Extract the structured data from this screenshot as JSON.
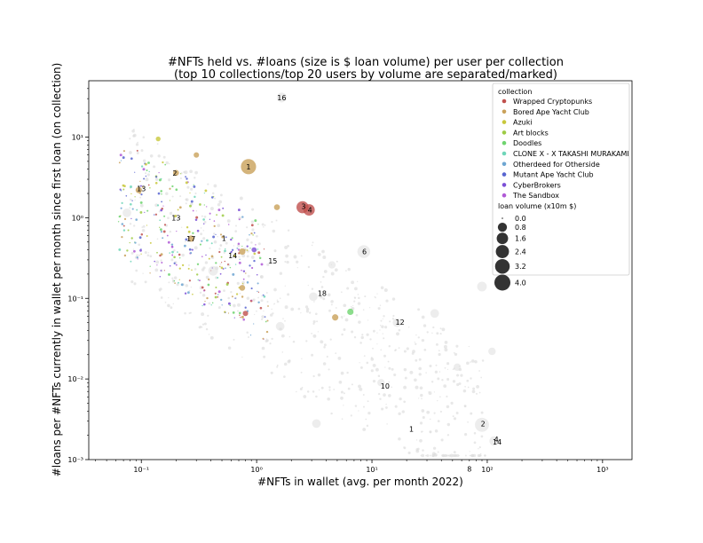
{
  "chart_data": {
    "type": "scatter",
    "title_line1": "#NFTs held vs. #loans (size is $ loan volume) per user per collection",
    "title_line2": "(top 10 collections/top 20 users by volume are separated/marked)",
    "xlabel": "#NFTs in wallet (avg. per month 2022)",
    "ylabel": "#loans per #NFTs currently in wallet per month since first loan (on collection)",
    "x_scale": "log",
    "y_scale": "log",
    "xlim": [
      0.035,
      1800
    ],
    "ylim": [
      0.001,
      50
    ],
    "x_ticks": [
      {
        "value": 0.1,
        "label": "10⁻¹"
      },
      {
        "value": 1,
        "label": "10⁰"
      },
      {
        "value": 10,
        "label": "10¹"
      },
      {
        "value": 100,
        "label": "10²"
      },
      {
        "value": 1000,
        "label": "10³"
      }
    ],
    "y_ticks": [
      {
        "value": 0.001,
        "label": "10⁻³"
      },
      {
        "value": 0.01,
        "label": "10⁻²"
      },
      {
        "value": 0.1,
        "label": "10⁻¹"
      },
      {
        "value": 1,
        "label": "10⁰"
      },
      {
        "value": 10,
        "label": "10¹"
      }
    ],
    "grid": false,
    "legend_placement": "top-right",
    "legend_title": "collection",
    "size_legend_title": "loan volume (x10m $)",
    "size_legend": [
      {
        "label": "0.0",
        "value": 0.0
      },
      {
        "label": "0.8",
        "value": 0.8
      },
      {
        "label": "1.6",
        "value": 1.6
      },
      {
        "label": "2.4",
        "value": 2.4
      },
      {
        "label": "3.2",
        "value": 3.2
      },
      {
        "label": "4.0",
        "value": 4.0
      }
    ],
    "series": [
      {
        "name": "Wrapped Cryptopunks",
        "color": "#c0504d"
      },
      {
        "name": "Bored Ape Yacht Club",
        "color": "#c9a15a"
      },
      {
        "name": "Azuki",
        "color": "#c8c83c"
      },
      {
        "name": "Art blocks",
        "color": "#9ecb45"
      },
      {
        "name": "Doodles",
        "color": "#6fd46f"
      },
      {
        "name": "CLONE X - X TAKASHI MURAKAMI",
        "color": "#6fd6b9"
      },
      {
        "name": "Otherdeed for Otherside",
        "color": "#6ea6d2"
      },
      {
        "name": "Mutant Ape Yacht Club",
        "color": "#5865d0"
      },
      {
        "name": "CyberBrokers",
        "color": "#7b4fd6"
      },
      {
        "name": "The Sandbox",
        "color": "#b05ad6"
      }
    ],
    "other_color": "#dedede",
    "points": [
      {
        "x": 0.85,
        "y": 4.3,
        "s": 2.4,
        "c": 1
      },
      {
        "x": 2.5,
        "y": 1.35,
        "s": 1.4,
        "c": 0
      },
      {
        "x": 2.85,
        "y": 1.25,
        "s": 1.2,
        "c": 0
      },
      {
        "x": 8.5,
        "y": 0.38,
        "s": 1.6,
        "c": -1
      },
      {
        "x": 90,
        "y": 0.0027,
        "s": 2.0,
        "c": -1
      },
      {
        "x": 115,
        "y": 0.0017,
        "s": 0.8,
        "c": -1
      },
      {
        "x": 1.65,
        "y": 31,
        "s": 0.8,
        "c": -1
      },
      {
        "x": 0.075,
        "y": 1.15,
        "s": 0.6,
        "c": -1
      },
      {
        "x": 0.42,
        "y": 0.22,
        "s": 0.8,
        "c": -1
      },
      {
        "x": 3.1,
        "y": 0.105,
        "s": 0.6,
        "c": -1
      },
      {
        "x": 90,
        "y": 0.14,
        "s": 0.8,
        "c": -1
      },
      {
        "x": 35,
        "y": 0.065,
        "s": 0.6,
        "c": -1
      },
      {
        "x": 16.5,
        "y": 0.05,
        "s": 0.6,
        "c": -1
      },
      {
        "x": 3.3,
        "y": 0.0028,
        "s": 0.6,
        "c": -1
      },
      {
        "x": 1.6,
        "y": 0.045,
        "s": 0.6,
        "c": -1
      },
      {
        "x": 12,
        "y": 0.009,
        "s": 0.4,
        "c": -1
      },
      {
        "x": 4.5,
        "y": 0.26,
        "s": 0.4,
        "c": -1
      },
      {
        "x": 55,
        "y": 0.014,
        "s": 0.4,
        "c": -1
      },
      {
        "x": 110,
        "y": 0.022,
        "s": 0.4,
        "c": -1
      },
      {
        "x": 0.095,
        "y": 2.2,
        "s": 0.25,
        "c": 1
      },
      {
        "x": 0.2,
        "y": 3.6,
        "s": 0.2,
        "c": 1
      },
      {
        "x": 0.75,
        "y": 0.38,
        "s": 0.25,
        "c": 1
      },
      {
        "x": 0.27,
        "y": 0.55,
        "s": 0.25,
        "c": 1
      },
      {
        "x": 4.8,
        "y": 0.058,
        "s": 0.25,
        "c": 1
      },
      {
        "x": 0.3,
        "y": 6.0,
        "s": 0.15,
        "c": 1
      },
      {
        "x": 1.5,
        "y": 1.35,
        "s": 0.2,
        "c": 1
      },
      {
        "x": 0.75,
        "y": 0.135,
        "s": 0.2,
        "c": 1
      },
      {
        "x": 6.5,
        "y": 0.068,
        "s": 0.25,
        "c": 4
      },
      {
        "x": 0.8,
        "y": 0.065,
        "s": 0.15,
        "c": 0
      },
      {
        "x": 0.14,
        "y": 9.5,
        "s": 0.1,
        "c": 2
      },
      {
        "x": 0.95,
        "y": 0.4,
        "s": 0.12,
        "c": 8
      }
    ],
    "annotations": [
      {
        "text": "1",
        "x": 0.85,
        "y": 4.3
      },
      {
        "text": "16",
        "x": 1.65,
        "y": 31
      },
      {
        "text": "2",
        "x": 0.195,
        "y": 3.6
      },
      {
        "text": "13",
        "x": 0.1,
        "y": 2.3
      },
      {
        "text": "13",
        "x": 0.2,
        "y": 1.0
      },
      {
        "text": "3",
        "x": 2.55,
        "y": 1.38
      },
      {
        "text": "4",
        "x": 2.9,
        "y": 1.25
      },
      {
        "text": "17",
        "x": 0.27,
        "y": 0.55
      },
      {
        "text": "1",
        "x": 0.52,
        "y": 0.56
      },
      {
        "text": "14",
        "x": 0.62,
        "y": 0.34
      },
      {
        "text": "15",
        "x": 1.38,
        "y": 0.29
      },
      {
        "text": "6",
        "x": 8.6,
        "y": 0.38
      },
      {
        "text": "18",
        "x": 3.7,
        "y": 0.115
      },
      {
        "text": "12",
        "x": 17.5,
        "y": 0.051
      },
      {
        "text": "10",
        "x": 13,
        "y": 0.0082
      },
      {
        "text": "1",
        "x": 22,
        "y": 0.0024
      },
      {
        "text": "2",
        "x": 92,
        "y": 0.0028
      },
      {
        "text": "4",
        "x": 120,
        "y": 0.0018
      },
      {
        "text": "14",
        "x": 122,
        "y": 0.00165
      },
      {
        "text": "8",
        "x": 70,
        "y": 0.00077
      }
    ]
  }
}
